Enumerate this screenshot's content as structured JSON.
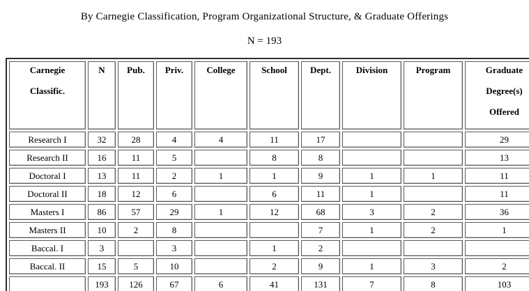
{
  "page": {
    "title": "By Carnegie Classification, Program Organizational Structure, & Graduate Offerings",
    "sample_size": "N = 193"
  },
  "table": {
    "headers": [
      [
        "Carnegie",
        "Classific."
      ],
      [
        "N"
      ],
      [
        "Pub."
      ],
      [
        "Priv."
      ],
      [
        "College"
      ],
      [
        "School"
      ],
      [
        "Dept."
      ],
      [
        "Division"
      ],
      [
        "Program"
      ],
      [
        "Graduate",
        "Degree(s)",
        "Offered"
      ]
    ],
    "rows": [
      {
        "label": "Research I",
        "values": [
          "32",
          "28",
          "4",
          "4",
          "11",
          "17",
          "",
          "",
          "29"
        ]
      },
      {
        "label": "Research II",
        "values": [
          "16",
          "11",
          "5",
          "",
          "8",
          "8",
          "",
          "",
          "13"
        ]
      },
      {
        "label": "Doctoral I",
        "values": [
          "13",
          "11",
          "2",
          "1",
          "1",
          "9",
          "1",
          "1",
          "11"
        ]
      },
      {
        "label": "Doctoral II",
        "values": [
          "18",
          "12",
          "6",
          "",
          "6",
          "11",
          "1",
          "",
          "11"
        ]
      },
      {
        "label": "Masters I",
        "values": [
          "86",
          "57",
          "29",
          "1",
          "12",
          "68",
          "3",
          "2",
          "36"
        ]
      },
      {
        "label": "Masters II",
        "values": [
          "10",
          "2",
          "8",
          "",
          "",
          "7",
          "1",
          "2",
          "1"
        ]
      },
      {
        "label": "Baccal. I",
        "values": [
          "3",
          "",
          "3",
          "",
          "1",
          "2",
          "",
          "",
          ""
        ]
      },
      {
        "label": "Baccal. II",
        "values": [
          "15",
          "5",
          "10",
          "",
          "2",
          "9",
          "1",
          "3",
          "2"
        ]
      },
      {
        "label": "",
        "values": [
          "193",
          "126",
          "67",
          "6",
          "41",
          "131",
          "7",
          "8",
          "103"
        ]
      }
    ]
  },
  "colors": {
    "text": "#000000",
    "cell_border": "#5a5a5a",
    "outer_border": "#2f2f2f",
    "background": "#ffffff"
  }
}
